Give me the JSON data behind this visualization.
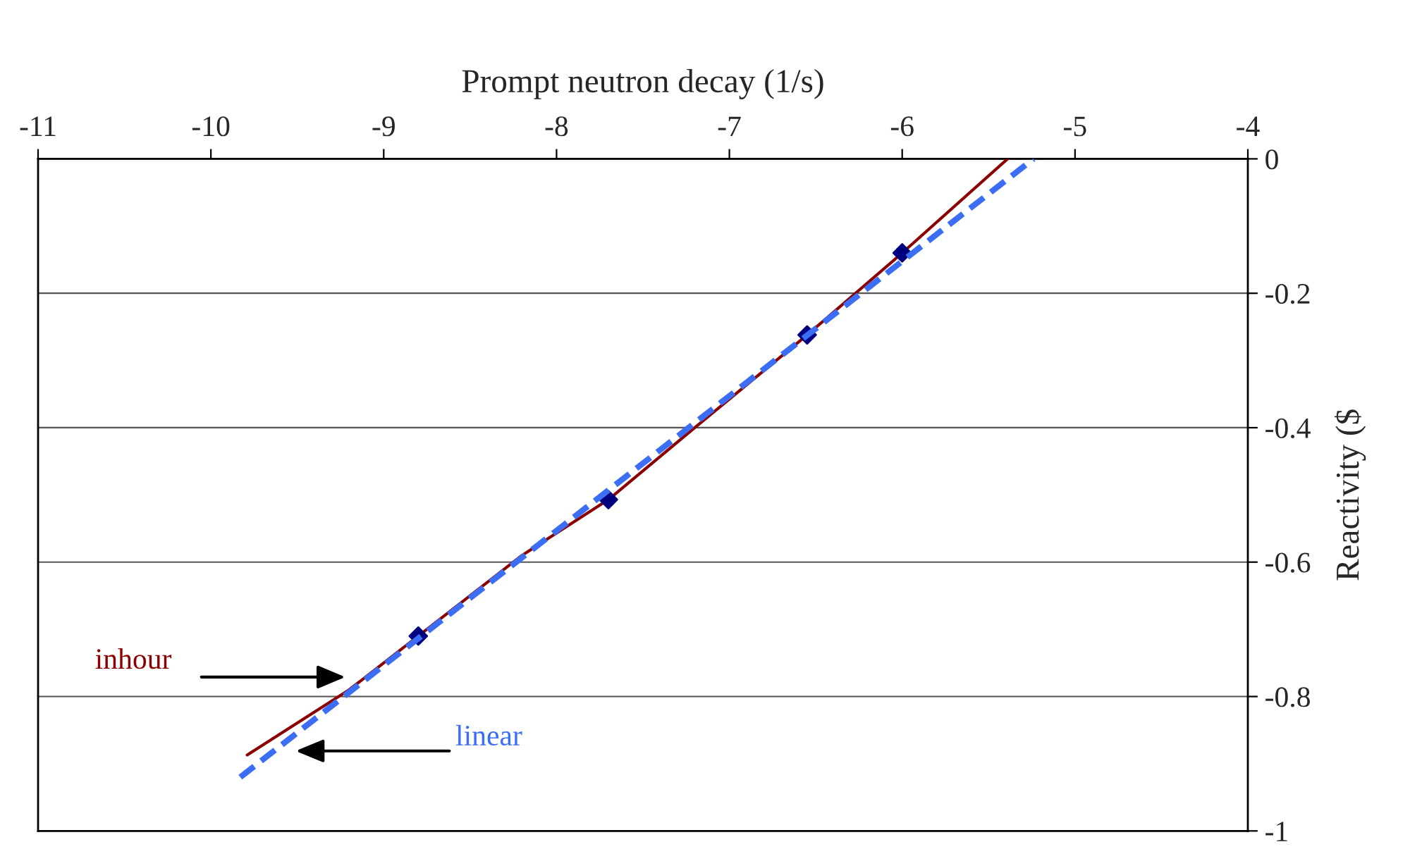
{
  "chart_data": {
    "type": "line",
    "xlabel": "Prompt neutron decay (1/s)",
    "ylabel": "Reactivity ($",
    "xlim": [
      -11,
      -4
    ],
    "xticks": [
      -11,
      -10,
      -9,
      -8,
      -7,
      -6,
      -5,
      -4
    ],
    "ylim": [
      -1,
      0
    ],
    "yticks": [
      -1,
      -0.8,
      -0.6,
      -0.4,
      -0.2,
      0
    ],
    "grid": "y",
    "series": [
      {
        "color": "#8b0000",
        "line_style": "solid",
        "marker": "none",
        "x": [
          -9.79,
          -9.2,
          -8.8,
          -8.2,
          -7.7,
          -7.2,
          -6.55,
          -6.0,
          -5.39
        ],
        "values": [
          -0.887,
          -0.79,
          -0.71,
          -0.59,
          -0.507,
          -0.4,
          -0.262,
          -0.14,
          0
        ]
      },
      {
        "color": "#3b6ef5",
        "line_style": "dashed",
        "marker": "none",
        "x": [
          -9.83,
          -5.24
        ],
        "values": [
          -0.92,
          0
        ]
      },
      {
        "type": "scatter",
        "color": "#00007f",
        "marker": "diamond",
        "x": [
          -8.8,
          -7.7,
          -6.55,
          -6.0
        ],
        "values": [
          -0.71,
          -0.507,
          -0.262,
          -0.14
        ]
      }
    ],
    "annotations": [
      "inhour",
      "linear"
    ]
  }
}
